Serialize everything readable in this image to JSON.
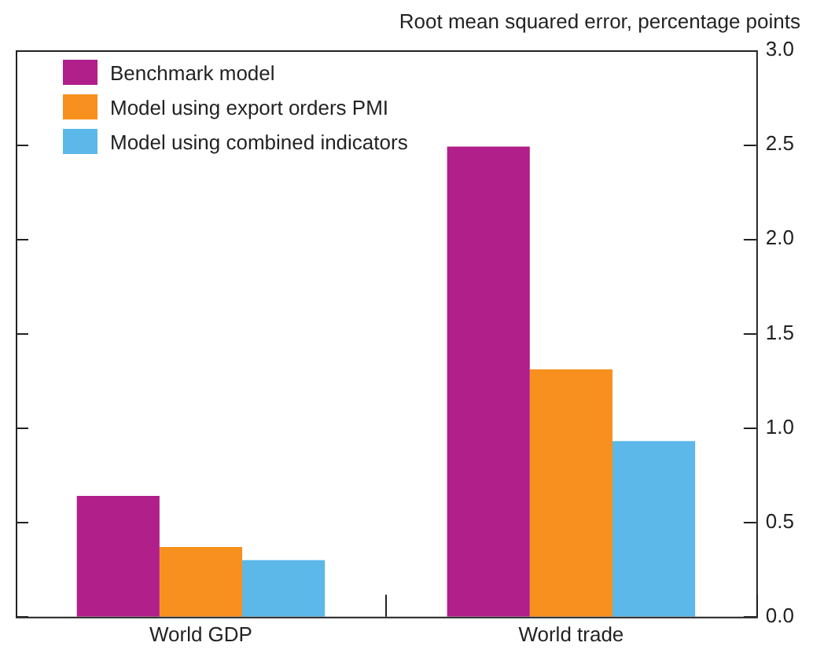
{
  "chart_data": {
    "type": "bar",
    "ylabel": "Root mean squared error, percentage points",
    "categories": [
      "World GDP",
      "World trade"
    ],
    "series": [
      {
        "name": "Benchmark model",
        "color": "#b01f8a",
        "values": [
          0.64,
          2.49
        ]
      },
      {
        "name": "Model using export orders PMI",
        "color": "#f7901e",
        "values": [
          0.37,
          1.31
        ]
      },
      {
        "name": "Model using combined indicators",
        "color": "#5bb8e8",
        "values": [
          0.3,
          0.93
        ]
      }
    ],
    "ylim": [
      0,
      3
    ],
    "yticks": [
      {
        "value": 0,
        "label": "0.0"
      },
      {
        "value": 0.5,
        "label": "0.5"
      },
      {
        "value": 1,
        "label": "1.0"
      },
      {
        "value": 1.5,
        "label": "1.5"
      },
      {
        "value": 2,
        "label": "2.0"
      },
      {
        "value": 2.5,
        "label": "2.5"
      },
      {
        "value": 3,
        "label": "3.0"
      }
    ],
    "grid": false,
    "legend": "top left"
  }
}
